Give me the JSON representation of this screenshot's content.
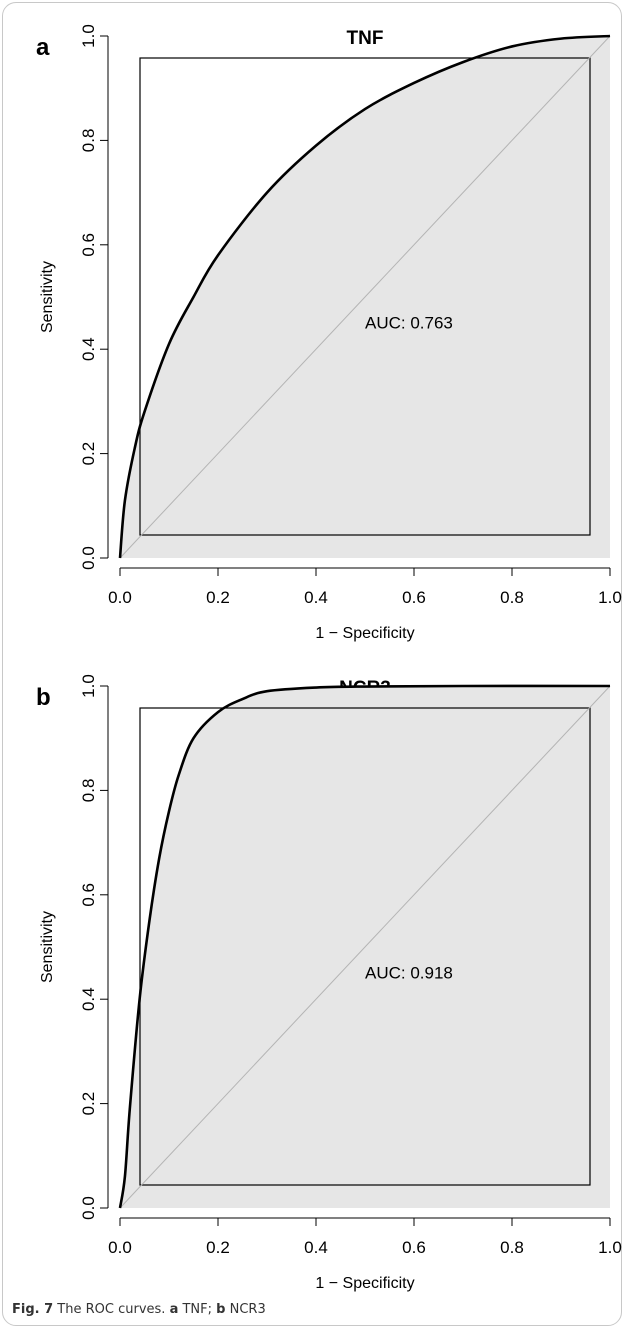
{
  "chart_data": [
    {
      "type": "line",
      "panel_label": "a",
      "title": "TNF",
      "xlabel": "1 − Specificity",
      "ylabel": "Sensitivity",
      "xlim": [
        0,
        1
      ],
      "ylim": [
        0,
        1
      ],
      "x_ticks": [
        "0.0",
        "0.2",
        "0.4",
        "0.6",
        "0.8",
        "1.0"
      ],
      "y_ticks": [
        "0.0",
        "0.2",
        "0.4",
        "0.6",
        "0.8",
        "1.0"
      ],
      "grid": false,
      "annotation": "AUC: 0.763",
      "auc": 0.763,
      "series": [
        {
          "x": [
            0.0,
            0.01,
            0.03,
            0.05,
            0.1,
            0.15,
            0.2,
            0.3,
            0.4,
            0.5,
            0.6,
            0.7,
            0.8,
            0.9,
            1.0
          ],
          "y": [
            0.0,
            0.11,
            0.21,
            0.28,
            0.41,
            0.5,
            0.58,
            0.7,
            0.79,
            0.86,
            0.91,
            0.95,
            0.98,
            0.995,
            1.0
          ]
        }
      ],
      "reference_line": "diagonal"
    },
    {
      "type": "line",
      "panel_label": "b",
      "title": "NCR3",
      "xlabel": "1 − Specificity",
      "ylabel": "Sensitivity",
      "xlim": [
        0,
        1
      ],
      "ylim": [
        0,
        1
      ],
      "x_ticks": [
        "0.0",
        "0.2",
        "0.4",
        "0.6",
        "0.8",
        "1.0"
      ],
      "y_ticks": [
        "0.0",
        "0.2",
        "0.4",
        "0.6",
        "0.8",
        "1.0"
      ],
      "grid": false,
      "annotation": "AUC: 0.918",
      "auc": 0.918,
      "series": [
        {
          "x": [
            0.0,
            0.01,
            0.02,
            0.04,
            0.06,
            0.08,
            0.1,
            0.12,
            0.15,
            0.2,
            0.25,
            0.3,
            0.4,
            0.5,
            0.7,
            1.0
          ],
          "y": [
            0.0,
            0.06,
            0.19,
            0.4,
            0.55,
            0.67,
            0.76,
            0.83,
            0.9,
            0.95,
            0.975,
            0.99,
            0.997,
            0.999,
            1.0,
            1.0
          ]
        }
      ],
      "reference_line": "diagonal"
    }
  ],
  "caption": {
    "fig": "Fig. 7",
    "text": "The ROC curves.",
    "a_label": "a",
    "a_text": "TNF;",
    "b_label": "b",
    "b_text": "NCR3"
  }
}
